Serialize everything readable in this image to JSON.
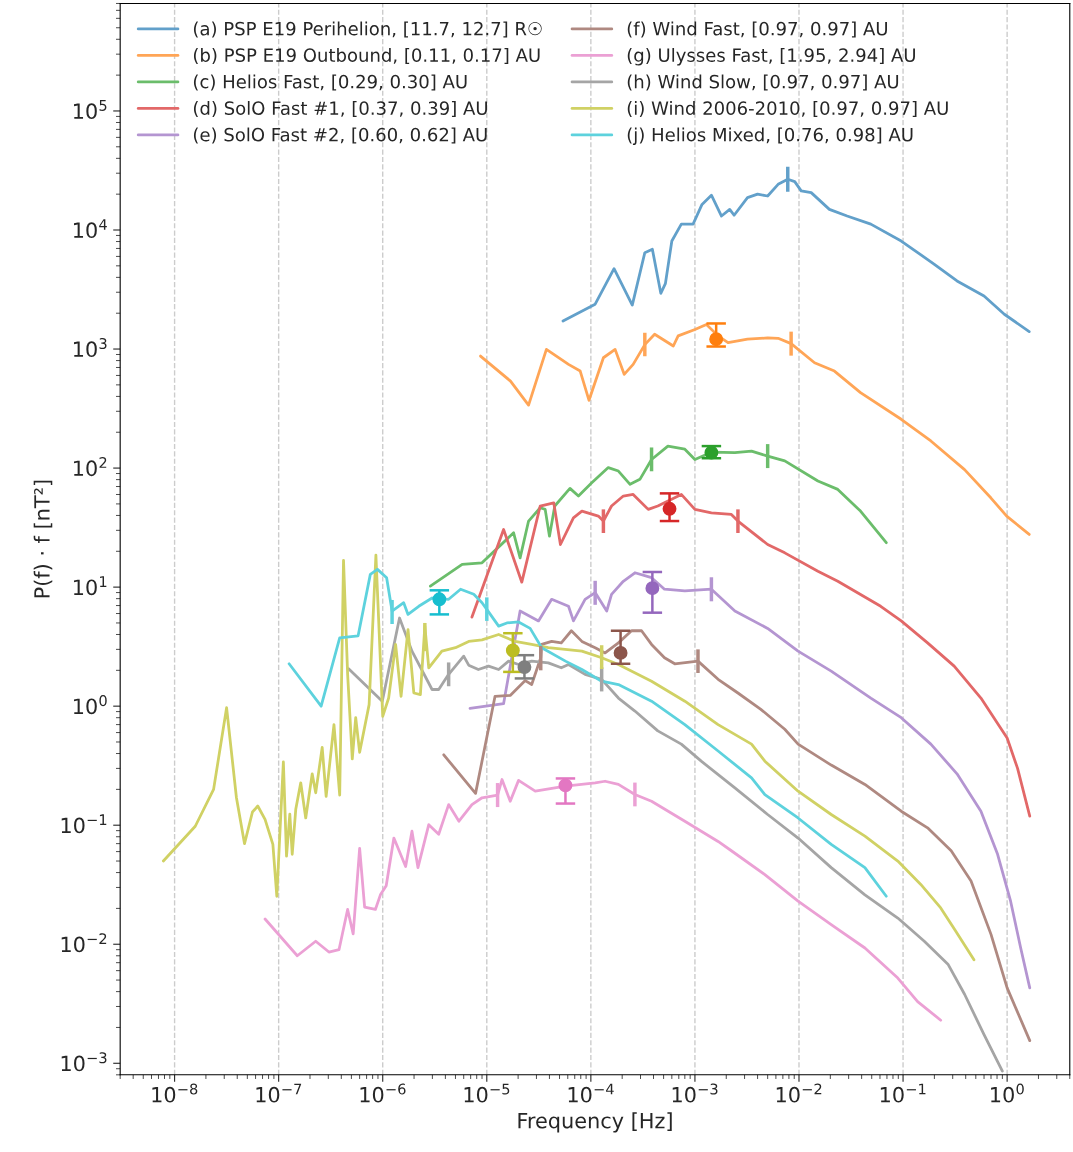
{
  "chart_data": {
    "type": "line",
    "xlabel": "Frequency [Hz]",
    "ylabel": "P(f) · f [nT²]",
    "log": "xy",
    "xlim": [
      3e-09,
      4
    ],
    "ylim": [
      0.0008,
      800000
    ],
    "xticks": [
      {
        "value": 1e-08,
        "label": "10$^{−8}$"
      },
      {
        "value": 1e-07,
        "label": "10$^{−7}$"
      },
      {
        "value": 1e-06,
        "label": "10$^{−6}$"
      },
      {
        "value": 1e-05,
        "label": "10$^{−5}$"
      },
      {
        "value": 0.0001,
        "label": "10$^{−4}$"
      },
      {
        "value": 0.001,
        "label": "10$^{−3}$"
      },
      {
        "value": 0.01,
        "label": "10$^{−2}$"
      },
      {
        "value": 0.1,
        "label": "10$^{−1}$"
      },
      {
        "value": 1,
        "label": "10$^{0}$"
      }
    ],
    "yticks": [
      {
        "value": 0.001,
        "label": "10$^{−3}$"
      },
      {
        "value": 0.01,
        "label": "10$^{−2}$"
      },
      {
        "value": 0.1,
        "label": "10$^{−1}$"
      },
      {
        "value": 1,
        "label": "10$^{0}$"
      },
      {
        "value": 10,
        "label": "10$^{1}$"
      },
      {
        "value": 100,
        "label": "10$^{2}$"
      },
      {
        "value": 1000,
        "label": "10$^{3}$"
      },
      {
        "value": 10000,
        "label": "10$^{4}$"
      },
      {
        "value": 100000,
        "label": "10$^{5}$"
      }
    ],
    "grid": "x",
    "legend": "top left",
    "series": [
      {
        "name": "(a) PSP E19 Perihelion, [11.7, 12.7] R☉",
        "color": "#62a0ca",
        "x": [
          5.4e-05,
          0.00011,
          0.000167,
          0.00025,
          0.00033,
          0.00039,
          0.00047,
          0.00052,
          0.0006,
          0.00074,
          0.00096,
          0.00117,
          0.00144,
          0.0018,
          0.00216,
          0.00238,
          0.0032,
          0.004,
          0.005,
          0.0063,
          0.0078,
          0.0091,
          0.0105,
          0.0131,
          0.0196,
          0.029,
          0.049,
          0.096,
          0.2,
          0.33,
          0.6,
          0.94,
          1.63
        ],
        "values": [
          1720,
          2380,
          4730,
          2340,
          6450,
          6890,
          2940,
          3540,
          8080,
          11200,
          11200,
          16400,
          19600,
          13100,
          14900,
          13300,
          18700,
          20000,
          19300,
          24200,
          26700,
          25500,
          21300,
          20600,
          14900,
          13100,
          11200,
          8080,
          5150,
          3730,
          2790,
          1960,
          1400
        ],
        "errors": [
          null,
          null,
          null,
          null,
          null,
          null,
          null,
          null,
          null,
          null,
          null,
          null,
          null,
          null,
          null,
          null,
          null,
          null,
          null,
          null,
          [
            21000,
            34000
          ],
          null,
          null,
          null,
          null,
          null,
          null,
          null,
          null,
          null,
          null,
          null,
          null
        ]
      },
      {
        "name": "(b) PSP E19 Outbound, [0.11, 0.17] AU",
        "color": "#ffa556",
        "x": [
          8.7e-06,
          1.69e-05,
          2.52e-05,
          3.74e-05,
          6.1e-05,
          7.9e-05,
          9.6e-05,
          0.000132,
          0.000171,
          0.000209,
          0.000255,
          0.00033,
          0.00041,
          0.00062,
          0.00069,
          0.001,
          0.00129,
          0.00167,
          0.00208,
          0.0032,
          0.005,
          0.0063,
          0.0084,
          0.0141,
          0.0219,
          0.039,
          0.096,
          0.185,
          0.39,
          0.7,
          0.99,
          1.63
        ],
        "values": [
          873,
          538,
          338,
          994,
          743,
          653,
          371,
          845,
          994,
          613,
          743,
          1090,
          1330,
          1060,
          1290,
          1460,
          1610,
          1290,
          1130,
          1210,
          1240,
          1230,
          1110,
          767,
          653,
          430,
          257,
          169,
          97,
          56,
          39.5,
          27.7
        ],
        "errors": [
          null,
          null,
          null,
          null,
          null,
          null,
          null,
          null,
          null,
          null,
          null,
          [
            870,
            1370
          ],
          null,
          null,
          null,
          null,
          null,
          null,
          null,
          null,
          null,
          null,
          [
            880,
            1400
          ],
          null,
          null,
          null,
          null,
          null,
          null,
          null,
          null,
          null
        ]
      },
      {
        "name": "(c) Helios Fast, [0.29, 0.30] AU",
        "color": "#6bbd6b",
        "x": [
          2.87e-06,
          5.8e-06,
          9e-06,
          1.81e-05,
          2.09e-05,
          2.52e-05,
          3.26e-05,
          3.64e-05,
          4e-05,
          4.5e-05,
          6.3e-05,
          7.6e-05,
          0.000102,
          0.000147,
          0.000184,
          0.000238,
          0.000296,
          0.000383,
          0.00055,
          0.0008,
          0.001,
          0.00144,
          0.00242,
          0.0035,
          0.005,
          0.0073,
          0.0152,
          0.0236,
          0.039,
          0.069
        ],
        "values": [
          10.2,
          15.5,
          16.0,
          28.6,
          17.6,
          35.9,
          46.4,
          45.0,
          26.8,
          48.0,
          67.5,
          58.2,
          75.2,
          101,
          94.4,
          73.0,
          80.4,
          118,
          153,
          144,
          118,
          136,
          135,
          139,
          126,
          115,
          77.8,
          66.2,
          43.5,
          23.6
        ],
        "errors": [
          null,
          null,
          null,
          null,
          null,
          null,
          null,
          null,
          null,
          null,
          null,
          null,
          null,
          null,
          null,
          null,
          null,
          [
            94,
            149
          ],
          null,
          null,
          null,
          null,
          null,
          null,
          [
            100,
            159
          ],
          null,
          null,
          null,
          null,
          null
        ]
      },
      {
        "name": "(d) SolO Fast #1, [0.37, 0.39] AU",
        "color": "#e26868",
        "x": [
          7.2e-06,
          1.45e-05,
          2.17e-05,
          3.26e-05,
          4.4e-05,
          5.1e-05,
          6.8e-05,
          8.2e-05,
          0.000118,
          0.000132,
          0.000158,
          0.000205,
          0.000255,
          0.000356,
          0.00044,
          0.00074,
          0.001,
          0.00144,
          0.00224,
          0.00259,
          0.005,
          0.0073,
          0.0152,
          0.0236,
          0.061,
          0.096,
          0.172,
          0.31,
          0.56,
          1.0,
          1.26,
          1.65
        ],
        "values": [
          5.6,
          30.5,
          11.0,
          48.0,
          51.1,
          22.8,
          38.2,
          43.5,
          39.5,
          35.9,
          48.0,
          58.2,
          60.1,
          45.0,
          48.0,
          60.1,
          45.0,
          42.1,
          40.8,
          35.9,
          22.8,
          19.4,
          13.6,
          11.2,
          6.9,
          5.2,
          3.4,
          2.17,
          1.17,
          0.54,
          0.3,
          0.119
        ],
        "errors": [
          null,
          null,
          null,
          null,
          null,
          null,
          null,
          null,
          null,
          [
            28.5,
            45
          ],
          null,
          null,
          null,
          null,
          null,
          null,
          null,
          null,
          null,
          [
            28.5,
            45
          ],
          null,
          null,
          null,
          null,
          null,
          null,
          null,
          null,
          null,
          null,
          null,
          null
        ]
      },
      {
        "name": "(e) SolO Fast #2, [0.60, 0.62] AU",
        "color": "#b495d1",
        "x": [
          6.9e-06,
          1.45e-05,
          2.09e-05,
          3.14e-05,
          4.2e-05,
          6.1e-05,
          6.8e-05,
          8.8e-05,
          0.00011,
          0.000142,
          0.000158,
          0.000205,
          0.000265,
          0.000383,
          0.00051,
          0.0008,
          0.00144,
          0.00242,
          0.005,
          0.0098,
          0.0204,
          0.049,
          0.096,
          0.185,
          0.33,
          0.56,
          0.81,
          1.08,
          1.35,
          1.65
        ],
        "values": [
          0.96,
          1.05,
          6.3,
          5.2,
          7.9,
          6.9,
          5.2,
          7.9,
          9.0,
          6.3,
          8.7,
          11.2,
          13.2,
          12.0,
          9.6,
          9.3,
          9.6,
          6.3,
          4.5,
          2.9,
          1.97,
          1.17,
          0.8,
          0.48,
          0.27,
          0.131,
          0.057,
          0.023,
          0.0093,
          0.0043
        ],
        "errors": [
          null,
          null,
          null,
          null,
          null,
          null,
          null,
          null,
          [
            7.1,
            11.3
          ],
          null,
          null,
          null,
          null,
          null,
          null,
          null,
          [
            7.6,
            12.1
          ],
          null,
          null,
          null,
          null,
          null,
          null,
          null,
          null,
          null,
          null,
          null,
          null,
          null
        ]
      },
      {
        "name": "(f) Wind Fast, [0.97, 0.97] AU",
        "color": "#af8981",
        "x": [
          3.86e-06,
          7.8e-06,
          1.2e-05,
          1.68e-05,
          2.34e-05,
          2.7e-05,
          3.3e-05,
          3.37e-05,
          4.2e-05,
          5.2e-05,
          6.5e-05,
          8.2e-05,
          0.00011,
          0.000137,
          0.000184,
          0.000246,
          0.000307,
          0.000383,
          0.00051,
          0.00064,
          0.00107,
          0.00167,
          0.00259,
          0.0043,
          0.0073,
          0.0098,
          0.0204,
          0.043,
          0.096,
          0.172,
          0.29,
          0.45,
          0.7,
          1.0,
          1.65
        ],
        "values": [
          0.39,
          0.185,
          1.21,
          1.23,
          1.64,
          1.52,
          2.55,
          3.3,
          3.5,
          3.4,
          4.3,
          3.5,
          3.1,
          2.8,
          3.4,
          4.3,
          4.3,
          3.3,
          2.55,
          2.27,
          2.39,
          1.68,
          1.29,
          0.94,
          0.64,
          0.48,
          0.32,
          0.22,
          0.131,
          0.095,
          0.061,
          0.034,
          0.0121,
          0.0043,
          0.00155
        ],
        "errors": [
          null,
          null,
          null,
          null,
          null,
          null,
          [
            2.0,
            3.2
          ],
          null,
          null,
          null,
          null,
          null,
          null,
          null,
          null,
          null,
          null,
          null,
          null,
          null,
          [
            1.9,
            3.0
          ],
          null,
          null,
          null,
          null,
          null,
          null,
          null,
          null,
          null,
          null,
          null,
          null,
          null,
          null
        ]
      },
      {
        "name": "(g) Ulysses Fast, [1.95, 2.94] AU",
        "color": "#eba0d4",
        "x": [
          7.4e-08,
          1.51e-07,
          2.27e-07,
          3.04e-07,
          3.8e-07,
          4.6e-07,
          5.2e-07,
          6e-07,
          6.7e-07,
          8.5e-07,
          9.5e-07,
          1.08e-06,
          1.28e-06,
          1.66e-06,
          1.91e-06,
          2.18e-06,
          2.77e-06,
          3.45e-06,
          4.3e-06,
          5.4e-06,
          7.2e-06,
          9e-06,
          1.27e-05,
          1.4e-05,
          1.68e-05,
          2.02e-05,
          2.92e-05,
          5.7e-05,
          0.00011,
          0.000137,
          0.000184,
          0.000265,
          0.000383,
          0.0008,
          0.00167,
          0.00224,
          0.0047,
          0.0098,
          0.0204,
          0.043,
          0.089,
          0.138,
          0.23
        ],
        "values": [
          0.0163,
          0.008,
          0.0106,
          0.0086,
          0.009,
          0.0196,
          0.0122,
          0.064,
          0.0205,
          0.0196,
          0.026,
          0.031,
          0.078,
          0.045,
          0.089,
          0.044,
          0.101,
          0.084,
          0.149,
          0.108,
          0.149,
          0.17,
          0.179,
          0.242,
          0.159,
          0.238,
          0.193,
          0.213,
          0.227,
          0.234,
          0.22,
          0.181,
          0.159,
          0.108,
          0.073,
          0.061,
          0.0385,
          0.023,
          0.0146,
          0.0093,
          0.0052,
          0.0033,
          0.0023
        ],
        "errors": [
          null,
          null,
          null,
          null,
          null,
          null,
          null,
          null,
          null,
          null,
          null,
          null,
          null,
          null,
          null,
          null,
          null,
          null,
          null,
          null,
          null,
          null,
          [
            0.142,
            0.226
          ],
          null,
          null,
          null,
          null,
          null,
          null,
          null,
          null,
          [
            0.144,
            0.228
          ],
          null,
          null,
          null,
          null,
          null,
          null,
          null,
          null,
          null,
          null,
          null
        ]
      },
      {
        "name": "(h) Wind Slow, [0.97, 0.97] AU",
        "color": "#a5a5a5",
        "x": [
          4.7e-07,
          9.9e-07,
          1.45e-06,
          1.91e-06,
          2.98e-06,
          3.45e-06,
          4.3e-06,
          6e-06,
          6.7e-06,
          8.3e-06,
          1.04e-05,
          1.3e-05,
          1.62e-05,
          2.02e-05,
          2.7e-05,
          3.9e-05,
          5.2e-05,
          6.1e-05,
          8.8e-05,
          0.000127,
          0.000184,
          0.000265,
          0.00044,
          0.00074,
          0.00115,
          0.00242,
          0.005,
          0.0098,
          0.0204,
          0.043,
          0.089,
          0.16,
          0.27,
          0.39,
          0.6,
          0.9
        ],
        "values": [
          2.06,
          1.1,
          5.5,
          2.9,
          1.38,
          1.38,
          1.85,
          2.63,
          2.21,
          2.03,
          2.17,
          2.03,
          2.39,
          2.24,
          2.39,
          2.31,
          2.1,
          2.24,
          1.85,
          1.68,
          1.17,
          0.91,
          0.62,
          0.48,
          0.345,
          0.206,
          0.123,
          0.078,
          0.044,
          0.026,
          0.0166,
          0.0106,
          0.0068,
          0.0038,
          0.00174,
          0.00086
        ],
        "errors": [
          null,
          null,
          null,
          null,
          null,
          null,
          [
            1.47,
            2.33
          ],
          null,
          null,
          null,
          null,
          null,
          null,
          null,
          null,
          null,
          null,
          null,
          null,
          [
            1.33,
            2.12
          ],
          null,
          null,
          null,
          null,
          null,
          null,
          null,
          null,
          null,
          null,
          null,
          null,
          null,
          null,
          null,
          null
        ]
      },
      {
        "name": "(i) Wind 2006-2010, [0.97, 0.97] AU",
        "color": "#d0d164",
        "x": [
          7.8e-09,
          1.58e-08,
          2.37e-08,
          3.16e-08,
          3.93e-08,
          4.7e-08,
          5.6e-08,
          6.3e-08,
          7.4e-08,
          8.8e-08,
          9.6e-08,
          1.11e-07,
          1.19e-07,
          1.28e-07,
          1.35e-07,
          1.46e-07,
          1.63e-07,
          1.82e-07,
          2.1e-07,
          2.27e-07,
          2.62e-07,
          2.86e-07,
          3.4e-07,
          3.86e-07,
          4.2e-07,
          4.6e-07,
          5.1e-07,
          5.5e-07,
          6e-07,
          7.4e-07,
          8.6e-07,
          1e-06,
          1.14e-06,
          1.33e-06,
          1.5e-06,
          1.75e-06,
          1.99e-06,
          2.3e-06,
          2.54e-06,
          2.77e-06,
          3.7e-06,
          5e-06,
          6.7e-06,
          9e-06,
          1.3e-05,
          1.87e-05,
          2.7e-05,
          3.9e-05,
          8.2e-05,
          0.000127,
          0.000184,
          0.000383,
          0.0008,
          0.00167,
          0.0035,
          0.0047,
          0.0098,
          0.0204,
          0.043,
          0.089,
          0.148,
          0.23,
          0.32,
          0.48
        ],
        "values": [
          0.05,
          0.098,
          0.2,
          0.97,
          0.17,
          0.07,
          0.129,
          0.145,
          0.112,
          0.069,
          0.0253,
          0.34,
          0.055,
          0.124,
          0.057,
          0.136,
          0.227,
          0.115,
          0.27,
          0.187,
          0.45,
          0.175,
          0.7,
          0.179,
          16.8,
          1.85,
          0.36,
          0.8,
          0.41,
          1.03,
          18.6,
          0.82,
          1.17,
          3.3,
          1.21,
          4.4,
          1.29,
          1.25,
          4.7,
          2.1,
          2.9,
          3.1,
          3.5,
          3.6,
          4.0,
          3.5,
          3.3,
          3.1,
          2.9,
          2.55,
          2.24,
          1.62,
          1.1,
          0.7,
          0.48,
          0.345,
          0.193,
          0.123,
          0.081,
          0.05,
          0.0318,
          0.0202,
          0.0129,
          0.0074
        ],
        "errors": [
          null,
          null,
          null,
          null,
          null,
          null,
          null,
          null,
          null,
          null,
          null,
          null,
          null,
          null,
          null,
          null,
          null,
          null,
          null,
          null,
          null,
          null,
          null,
          null,
          null,
          null,
          null,
          null,
          null,
          null,
          null,
          null,
          null,
          null,
          null,
          null,
          null,
          null,
          [
            2.9,
            5.0
          ],
          null,
          null,
          null,
          null,
          null,
          null,
          null,
          null,
          null,
          null,
          [
            2.05,
            3.25
          ],
          null,
          null,
          null,
          null,
          null,
          null,
          null,
          null,
          null,
          null,
          null,
          null,
          null,
          null
        ]
      },
      {
        "name": "(j) Helios Mixed, [0.76, 0.98] AU",
        "color": "#5dd2dd",
        "x": [
          1.26e-07,
          2.56e-07,
          3.86e-07,
          5.8e-07,
          7.6e-07,
          8.9e-07,
          1.09e-06,
          1.23e-06,
          1.59e-06,
          1.75e-06,
          2.22e-06,
          2.98e-06,
          4.3e-06,
          5.6e-06,
          7.5e-06,
          9e-06,
          1e-05,
          1.3e-05,
          1.56e-05,
          2.02e-05,
          2.61e-05,
          3.37e-05,
          5.7e-05,
          8.2e-05,
          0.000127,
          0.000184,
          0.000383,
          0.0008,
          0.00167,
          0.0035,
          0.0047,
          0.0098,
          0.0204,
          0.043,
          0.069
        ],
        "values": [
          2.27,
          1.0,
          3.75,
          3.9,
          12.8,
          14.1,
          12.0,
          6.3,
          7.4,
          5.9,
          6.9,
          8.1,
          7.9,
          9.6,
          8.7,
          7.4,
          6.5,
          4.7,
          5.0,
          5.1,
          4.5,
          3.1,
          2.39,
          2.03,
          1.62,
          1.52,
          1.1,
          0.7,
          0.42,
          0.25,
          0.181,
          0.115,
          0.069,
          0.044,
          0.0253
        ],
        "errors": [
          null,
          null,
          null,
          null,
          null,
          null,
          null,
          [
            4.9,
            7.8
          ],
          null,
          null,
          null,
          null,
          null,
          null,
          null,
          null,
          [
            5.2,
            8.2
          ],
          null,
          null,
          null,
          null,
          null,
          null,
          null,
          null,
          null,
          null,
          null,
          null,
          null,
          null,
          null,
          null,
          null,
          null
        ]
      },
      {
        "type": "scatter",
        "marker": "circle",
        "color": "#ff7f0e",
        "x": [
          0.0016
        ],
        "values": [
          1210
        ],
        "errors": [
          [
            1050,
            1640
          ]
        ]
      },
      {
        "type": "scatter",
        "marker": "circle",
        "color": "#2ca02c",
        "x": [
          0.00144
        ],
        "values": [
          135
        ],
        "errors": [
          [
            121,
            153
          ]
        ]
      },
      {
        "type": "scatter",
        "marker": "circle",
        "color": "#d62728",
        "x": [
          0.00057
        ],
        "values": [
          45.5
        ],
        "errors": [
          [
            35.9,
            61.3
          ]
        ]
      },
      {
        "type": "scatter",
        "marker": "circle",
        "color": "#9467bd",
        "x": [
          0.00039
        ],
        "values": [
          9.8
        ],
        "errors": [
          [
            6.1,
            13.4
          ]
        ]
      },
      {
        "type": "scatter",
        "marker": "circle",
        "color": "#8c564b",
        "x": [
          0.000193
        ],
        "values": [
          2.8
        ],
        "errors": [
          [
            2.27,
            4.3
          ]
        ]
      },
      {
        "type": "scatter",
        "marker": "circle",
        "color": "#e377c2",
        "x": [
          5.7e-05
        ],
        "values": [
          0.216
        ],
        "errors": [
          [
            0.152,
            0.247
          ]
        ]
      },
      {
        "type": "scatter",
        "marker": "circle",
        "color": "#7f7f7f",
        "x": [
          2.3e-05
        ],
        "values": [
          2.13
        ],
        "errors": [
          [
            1.71,
            2.68
          ]
        ]
      },
      {
        "type": "scatter",
        "marker": "circle",
        "color": "#bcbd22",
        "x": [
          1.78e-05
        ],
        "values": [
          2.94
        ],
        "errors": [
          [
            1.94,
            4.1
          ]
        ]
      },
      {
        "type": "scatter",
        "marker": "circle",
        "color": "#17becf",
        "x": [
          3.5e-06
        ],
        "values": [
          7.9
        ],
        "errors": [
          [
            5.9,
            9.4
          ]
        ]
      }
    ]
  }
}
